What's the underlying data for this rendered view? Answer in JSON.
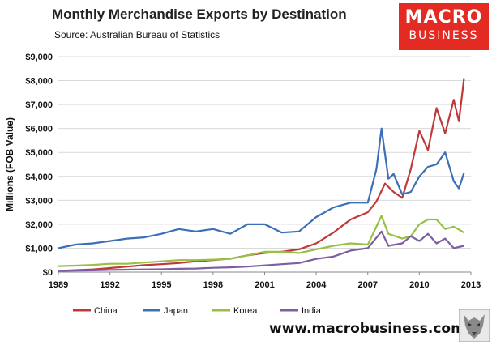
{
  "title": "Monthly Merchandise Exports by Destination",
  "subtitle": "Source:  Australian Bureau of Statistics",
  "logo": {
    "top": "MACRO",
    "bottom": "BUSINESS",
    "color": "#e32b24"
  },
  "website": "www.macrobusiness.com.au",
  "chart_data": {
    "type": "line",
    "title": "Monthly Merchandise Exports by Destination",
    "ylabel": "Millions (FOB Value)",
    "xlabel": "",
    "xlim": [
      1989,
      2013
    ],
    "ylim": [
      0,
      9000
    ],
    "x_ticks": [
      "1989",
      "1992",
      "1995",
      "1998",
      "2001",
      "2004",
      "2007",
      "2010",
      "2013"
    ],
    "y_ticks": [
      "$0",
      "$1,000",
      "$2,000",
      "$3,000",
      "$4,000",
      "$5,000",
      "$6,000",
      "$7,000",
      "$8,000",
      "$9,000"
    ],
    "grid": true,
    "legend_position": "bottom",
    "series": [
      {
        "name": "China",
        "color": "#c0383a",
        "x": [
          1989,
          1990,
          1991,
          1992,
          1993,
          1994,
          1995,
          1996,
          1997,
          1998,
          1999,
          2000,
          2001,
          2002,
          2003,
          2004,
          2005,
          2006,
          2007,
          2007.5,
          2008,
          2008.5,
          2009,
          2009.5,
          2010,
          2010.5,
          2011,
          2011.5,
          2012,
          2012.3,
          2012.6
        ],
        "values": [
          50,
          80,
          110,
          170,
          230,
          290,
          330,
          380,
          450,
          500,
          560,
          700,
          800,
          850,
          950,
          1200,
          1650,
          2200,
          2500,
          2950,
          3700,
          3350,
          3100,
          4300,
          5900,
          5100,
          6850,
          5800,
          7200,
          6300,
          8100
        ]
      },
      {
        "name": "Japan",
        "color": "#3b6fb6",
        "x": [
          1989,
          1990,
          1991,
          1992,
          1993,
          1994,
          1995,
          1996,
          1997,
          1998,
          1999,
          2000,
          2001,
          2002,
          2003,
          2004,
          2005,
          2006,
          2007,
          2007.5,
          2007.8,
          2008.2,
          2008.5,
          2009,
          2009.5,
          2010,
          2010.5,
          2011,
          2011.5,
          2012,
          2012.3,
          2012.6
        ],
        "values": [
          1000,
          1150,
          1200,
          1300,
          1400,
          1450,
          1600,
          1800,
          1700,
          1800,
          1600,
          2000,
          2000,
          1650,
          1700,
          2300,
          2700,
          2900,
          2900,
          4300,
          6000,
          3900,
          4100,
          3250,
          3350,
          4000,
          4400,
          4500,
          5000,
          3800,
          3500,
          4150
        ]
      },
      {
        "name": "Korea",
        "color": "#96c145",
        "x": [
          1989,
          1990,
          1991,
          1992,
          1993,
          1994,
          1995,
          1996,
          1997,
          1998,
          1999,
          2000,
          2001,
          2002,
          2003,
          2004,
          2005,
          2006,
          2007,
          2007.8,
          2008.2,
          2009,
          2009.5,
          2010,
          2010.5,
          2011,
          2011.5,
          2012,
          2012.6
        ],
        "values": [
          250,
          270,
          300,
          350,
          350,
          400,
          450,
          500,
          500,
          520,
          550,
          700,
          850,
          850,
          800,
          950,
          1100,
          1200,
          1150,
          2350,
          1600,
          1400,
          1500,
          2000,
          2200,
          2200,
          1800,
          1900,
          1650
        ]
      },
      {
        "name": "India",
        "color": "#7d5ea4",
        "x": [
          1989,
          1990,
          1991,
          1992,
          1993,
          1994,
          1995,
          1996,
          1997,
          1998,
          1999,
          2000,
          2001,
          2002,
          2003,
          2004,
          2005,
          2006,
          2007,
          2007.8,
          2008.2,
          2009,
          2009.5,
          2010,
          2010.5,
          2011,
          2011.5,
          2012,
          2012.6
        ],
        "values": [
          50,
          60,
          70,
          90,
          100,
          110,
          120,
          140,
          150,
          180,
          200,
          230,
          280,
          330,
          380,
          550,
          650,
          900,
          1000,
          1700,
          1100,
          1200,
          1500,
          1300,
          1600,
          1200,
          1400,
          1000,
          1100
        ]
      }
    ]
  }
}
